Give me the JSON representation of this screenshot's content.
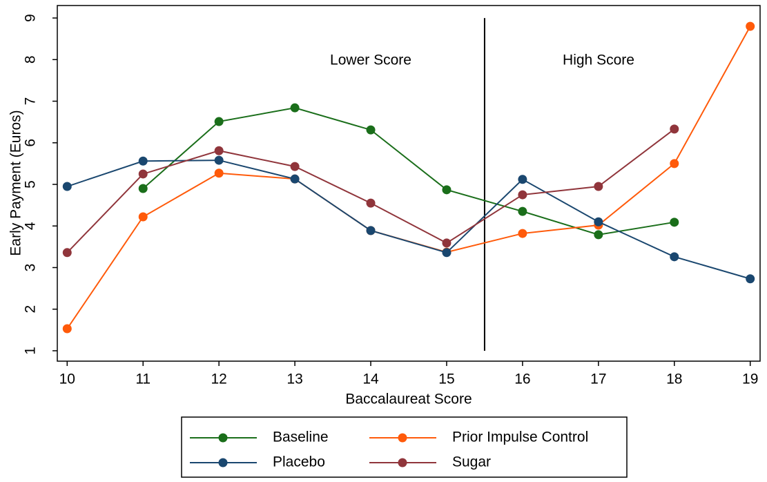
{
  "chart_data": {
    "type": "line",
    "x_label": "Baccalaureat Score",
    "y_label": "Early Payment (Euros)",
    "x": [
      10,
      11,
      12,
      13,
      14,
      15,
      16,
      17,
      18,
      19
    ],
    "series": [
      {
        "name": "Baseline",
        "color": "#1a6e1a",
        "values": [
          null,
          4.9,
          6.51,
          6.84,
          6.31,
          4.87,
          4.35,
          3.79,
          4.09,
          null
        ]
      },
      {
        "name": "Prior Impulse Control",
        "color": "#ff5a0a",
        "values": [
          1.53,
          4.22,
          5.27,
          5.13,
          3.89,
          3.37,
          3.82,
          4.02,
          5.5,
          8.8
        ]
      },
      {
        "name": "Placebo",
        "color": "#1a476f",
        "values": [
          4.95,
          5.56,
          5.58,
          5.13,
          3.89,
          3.36,
          5.12,
          4.1,
          3.26,
          2.73
        ]
      },
      {
        "name": "Sugar",
        "color": "#90353b",
        "values": [
          3.36,
          5.25,
          5.81,
          5.43,
          4.55,
          3.59,
          4.75,
          4.95,
          6.33,
          null
        ]
      }
    ],
    "xlim": [
      9.87,
      19.13
    ],
    "ylim": [
      0.75,
      9.3
    ],
    "xticks": [
      10,
      11,
      12,
      13,
      14,
      15,
      16,
      17,
      18,
      19
    ],
    "yticks": [
      1,
      2,
      3,
      4,
      5,
      6,
      7,
      8,
      9
    ],
    "cutoff": 15.5,
    "annotations": [
      "Lower Score",
      "High Score"
    ]
  }
}
